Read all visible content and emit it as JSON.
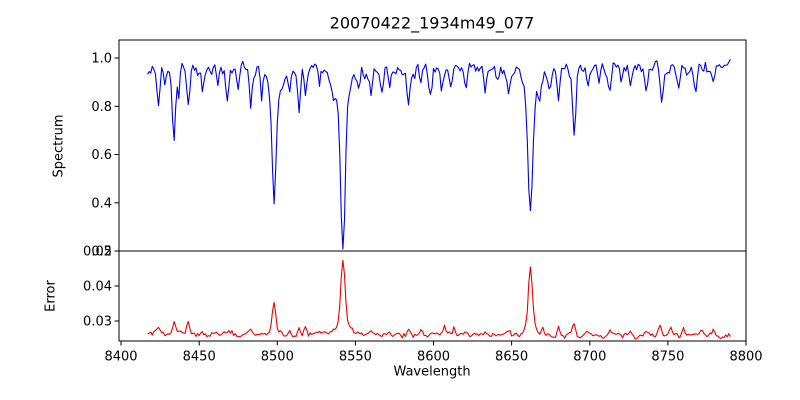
{
  "figure": {
    "title": "20070422_1934m49_077",
    "xlabel": "Wavelength",
    "xlim": [
      8398.7,
      8800.0
    ],
    "xticks": [
      {
        "v": 8400,
        "label": "8400"
      },
      {
        "v": 8450,
        "label": "8450"
      },
      {
        "v": 8500,
        "label": "8500"
      },
      {
        "v": 8550,
        "label": "8550"
      },
      {
        "v": 8600,
        "label": "8600"
      },
      {
        "v": 8650,
        "label": "8650"
      },
      {
        "v": 8700,
        "label": "8700"
      },
      {
        "v": 8750,
        "label": "8750"
      },
      {
        "v": 8800,
        "label": "8800"
      }
    ],
    "grid": false,
    "legend": "none"
  },
  "chart_data": [
    {
      "type": "line",
      "name": "spectrum",
      "ylabel": "Spectrum",
      "line_color": "#0000ee",
      "ylim": [
        0.2,
        1.0747
      ],
      "yticks": [
        {
          "v": 1.0,
          "label": "1.0"
        },
        {
          "v": 0.8,
          "label": "0.8"
        },
        {
          "v": 0.6,
          "label": "0.6"
        },
        {
          "v": 0.4,
          "label": "0.4"
        },
        {
          "v": 0.2,
          "label": "0.2"
        }
      ],
      "x_start": 8417,
      "x_end": 8790,
      "sample_step": 1,
      "baseline": 0.955,
      "noise": {
        "correlated": 0.045,
        "white": 0.01
      },
      "clip": [
        0.205,
        1.05
      ],
      "features_format": "[center_wavelength_A, amplitude, sigma_A]",
      "features": [
        [
          8424,
          -0.17,
          0.9
        ],
        [
          8428,
          -0.08,
          0.7
        ],
        [
          8434,
          -0.3,
          1.0
        ],
        [
          8437,
          -0.1,
          0.7
        ],
        [
          8443,
          -0.17,
          0.9
        ],
        [
          8452,
          -0.09,
          0.8
        ],
        [
          8462,
          -0.08,
          0.8
        ],
        [
          8468,
          -0.11,
          0.9
        ],
        [
          8475,
          -0.07,
          0.7
        ],
        [
          8483,
          -0.17,
          1.0
        ],
        [
          8490,
          -0.09,
          0.8
        ],
        [
          8498,
          -0.46,
          1.3
        ],
        [
          8498,
          -0.09,
          4.5
        ],
        [
          8508,
          -0.07,
          0.8
        ],
        [
          8514,
          -0.16,
          0.9
        ],
        [
          8518,
          -0.12,
          0.8
        ],
        [
          8527,
          -0.08,
          0.8
        ],
        [
          8536,
          -0.07,
          0.8
        ],
        [
          8542,
          -0.62,
          1.5
        ],
        [
          8542,
          -0.12,
          5.5
        ],
        [
          8552,
          -0.08,
          0.9
        ],
        [
          8560,
          -0.09,
          0.9
        ],
        [
          8567,
          -0.08,
          0.8
        ],
        [
          8572,
          -0.07,
          0.8
        ],
        [
          8584,
          -0.12,
          1.0
        ],
        [
          8592,
          -0.07,
          0.8
        ],
        [
          8598,
          -0.09,
          0.9
        ],
        [
          8605,
          -0.08,
          0.8
        ],
        [
          8611,
          -0.1,
          0.9
        ],
        [
          8621,
          -0.09,
          0.8
        ],
        [
          8633,
          -0.07,
          0.8
        ],
        [
          8641,
          -0.06,
          0.8
        ],
        [
          8648,
          -0.09,
          0.9
        ],
        [
          8662,
          -0.52,
          1.5
        ],
        [
          8662,
          -0.1,
          5.0
        ],
        [
          8668,
          -0.08,
          0.8
        ],
        [
          8674,
          -0.1,
          0.9
        ],
        [
          8680,
          -0.13,
          0.9
        ],
        [
          8690,
          -0.28,
          1.0
        ],
        [
          8699,
          -0.08,
          0.8
        ],
        [
          8706,
          -0.06,
          0.8
        ],
        [
          8713,
          -0.11,
          0.9
        ],
        [
          8720,
          -0.07,
          0.8
        ],
        [
          8726,
          -0.08,
          0.8
        ],
        [
          8736,
          -0.09,
          0.9
        ],
        [
          8746,
          -0.16,
          1.0
        ],
        [
          8757,
          -0.08,
          0.8
        ],
        [
          8768,
          -0.1,
          0.9
        ],
        [
          8779,
          -0.08,
          0.8
        ]
      ],
      "notable_absorption_lines_A": [
        8498,
        8542,
        8662
      ],
      "line_minima": {
        "8498": 0.4,
        "8542": 0.22,
        "8662": 0.33
      }
    },
    {
      "type": "line",
      "name": "error",
      "ylabel": "Error",
      "line_color": "#ee0000",
      "ylim": [
        0.02429,
        0.05
      ],
      "yticks": [
        {
          "v": 0.05,
          "label": "0.05"
        },
        {
          "v": 0.04,
          "label": "0.04"
        },
        {
          "v": 0.03,
          "label": "0.03"
        }
      ],
      "x_start": 8417,
      "x_end": 8790,
      "sample_step": 1,
      "baseline_start": 0.0264,
      "baseline_end": 0.0256,
      "noise": {
        "correlated": 0.0011,
        "white": 0.0003
      },
      "clip": [
        0.0246,
        0.0488
      ],
      "features_format": "[center_wavelength_A, amplitude, sigma_A]",
      "features": [
        [
          8424,
          0.0012,
          0.8
        ],
        [
          8434,
          0.0028,
          0.9
        ],
        [
          8443,
          0.0035,
          0.9
        ],
        [
          8452,
          0.001,
          0.8
        ],
        [
          8468,
          0.001,
          0.8
        ],
        [
          8483,
          0.0014,
          0.9
        ],
        [
          8490,
          0.001,
          0.8
        ],
        [
          8498,
          0.0085,
          1.1
        ],
        [
          8498,
          0.0012,
          3.5
        ],
        [
          8508,
          0.0008,
          0.8
        ],
        [
          8514,
          0.0018,
          0.8
        ],
        [
          8518,
          0.0024,
          0.8
        ],
        [
          8527,
          0.0008,
          0.8
        ],
        [
          8542,
          0.0185,
          1.3
        ],
        [
          8542,
          0.0035,
          4.0
        ],
        [
          8552,
          0.001,
          0.8
        ],
        [
          8560,
          0.0012,
          0.8
        ],
        [
          8572,
          0.0008,
          0.8
        ],
        [
          8584,
          0.0012,
          0.9
        ],
        [
          8592,
          0.0009,
          0.8
        ],
        [
          8607,
          0.0022,
          0.9
        ],
        [
          8613,
          0.0018,
          0.8
        ],
        [
          8621,
          0.001,
          0.8
        ],
        [
          8633,
          0.0008,
          0.8
        ],
        [
          8648,
          0.001,
          0.8
        ],
        [
          8662,
          0.0165,
          1.2
        ],
        [
          8662,
          0.003,
          3.5
        ],
        [
          8670,
          0.002,
          0.8
        ],
        [
          8680,
          0.0026,
          0.9
        ],
        [
          8690,
          0.003,
          0.9
        ],
        [
          8699,
          0.001,
          0.8
        ],
        [
          8713,
          0.0014,
          0.8
        ],
        [
          8726,
          0.001,
          0.8
        ],
        [
          8736,
          0.0014,
          0.8
        ],
        [
          8745,
          0.0026,
          0.9
        ],
        [
          8752,
          0.0018,
          0.8
        ],
        [
          8760,
          0.0022,
          0.8
        ],
        [
          8772,
          0.0014,
          0.8
        ],
        [
          8779,
          0.0016,
          0.8
        ]
      ],
      "peak_values": {
        "8542": 0.048,
        "8662": 0.045,
        "8498": 0.035
      }
    }
  ]
}
